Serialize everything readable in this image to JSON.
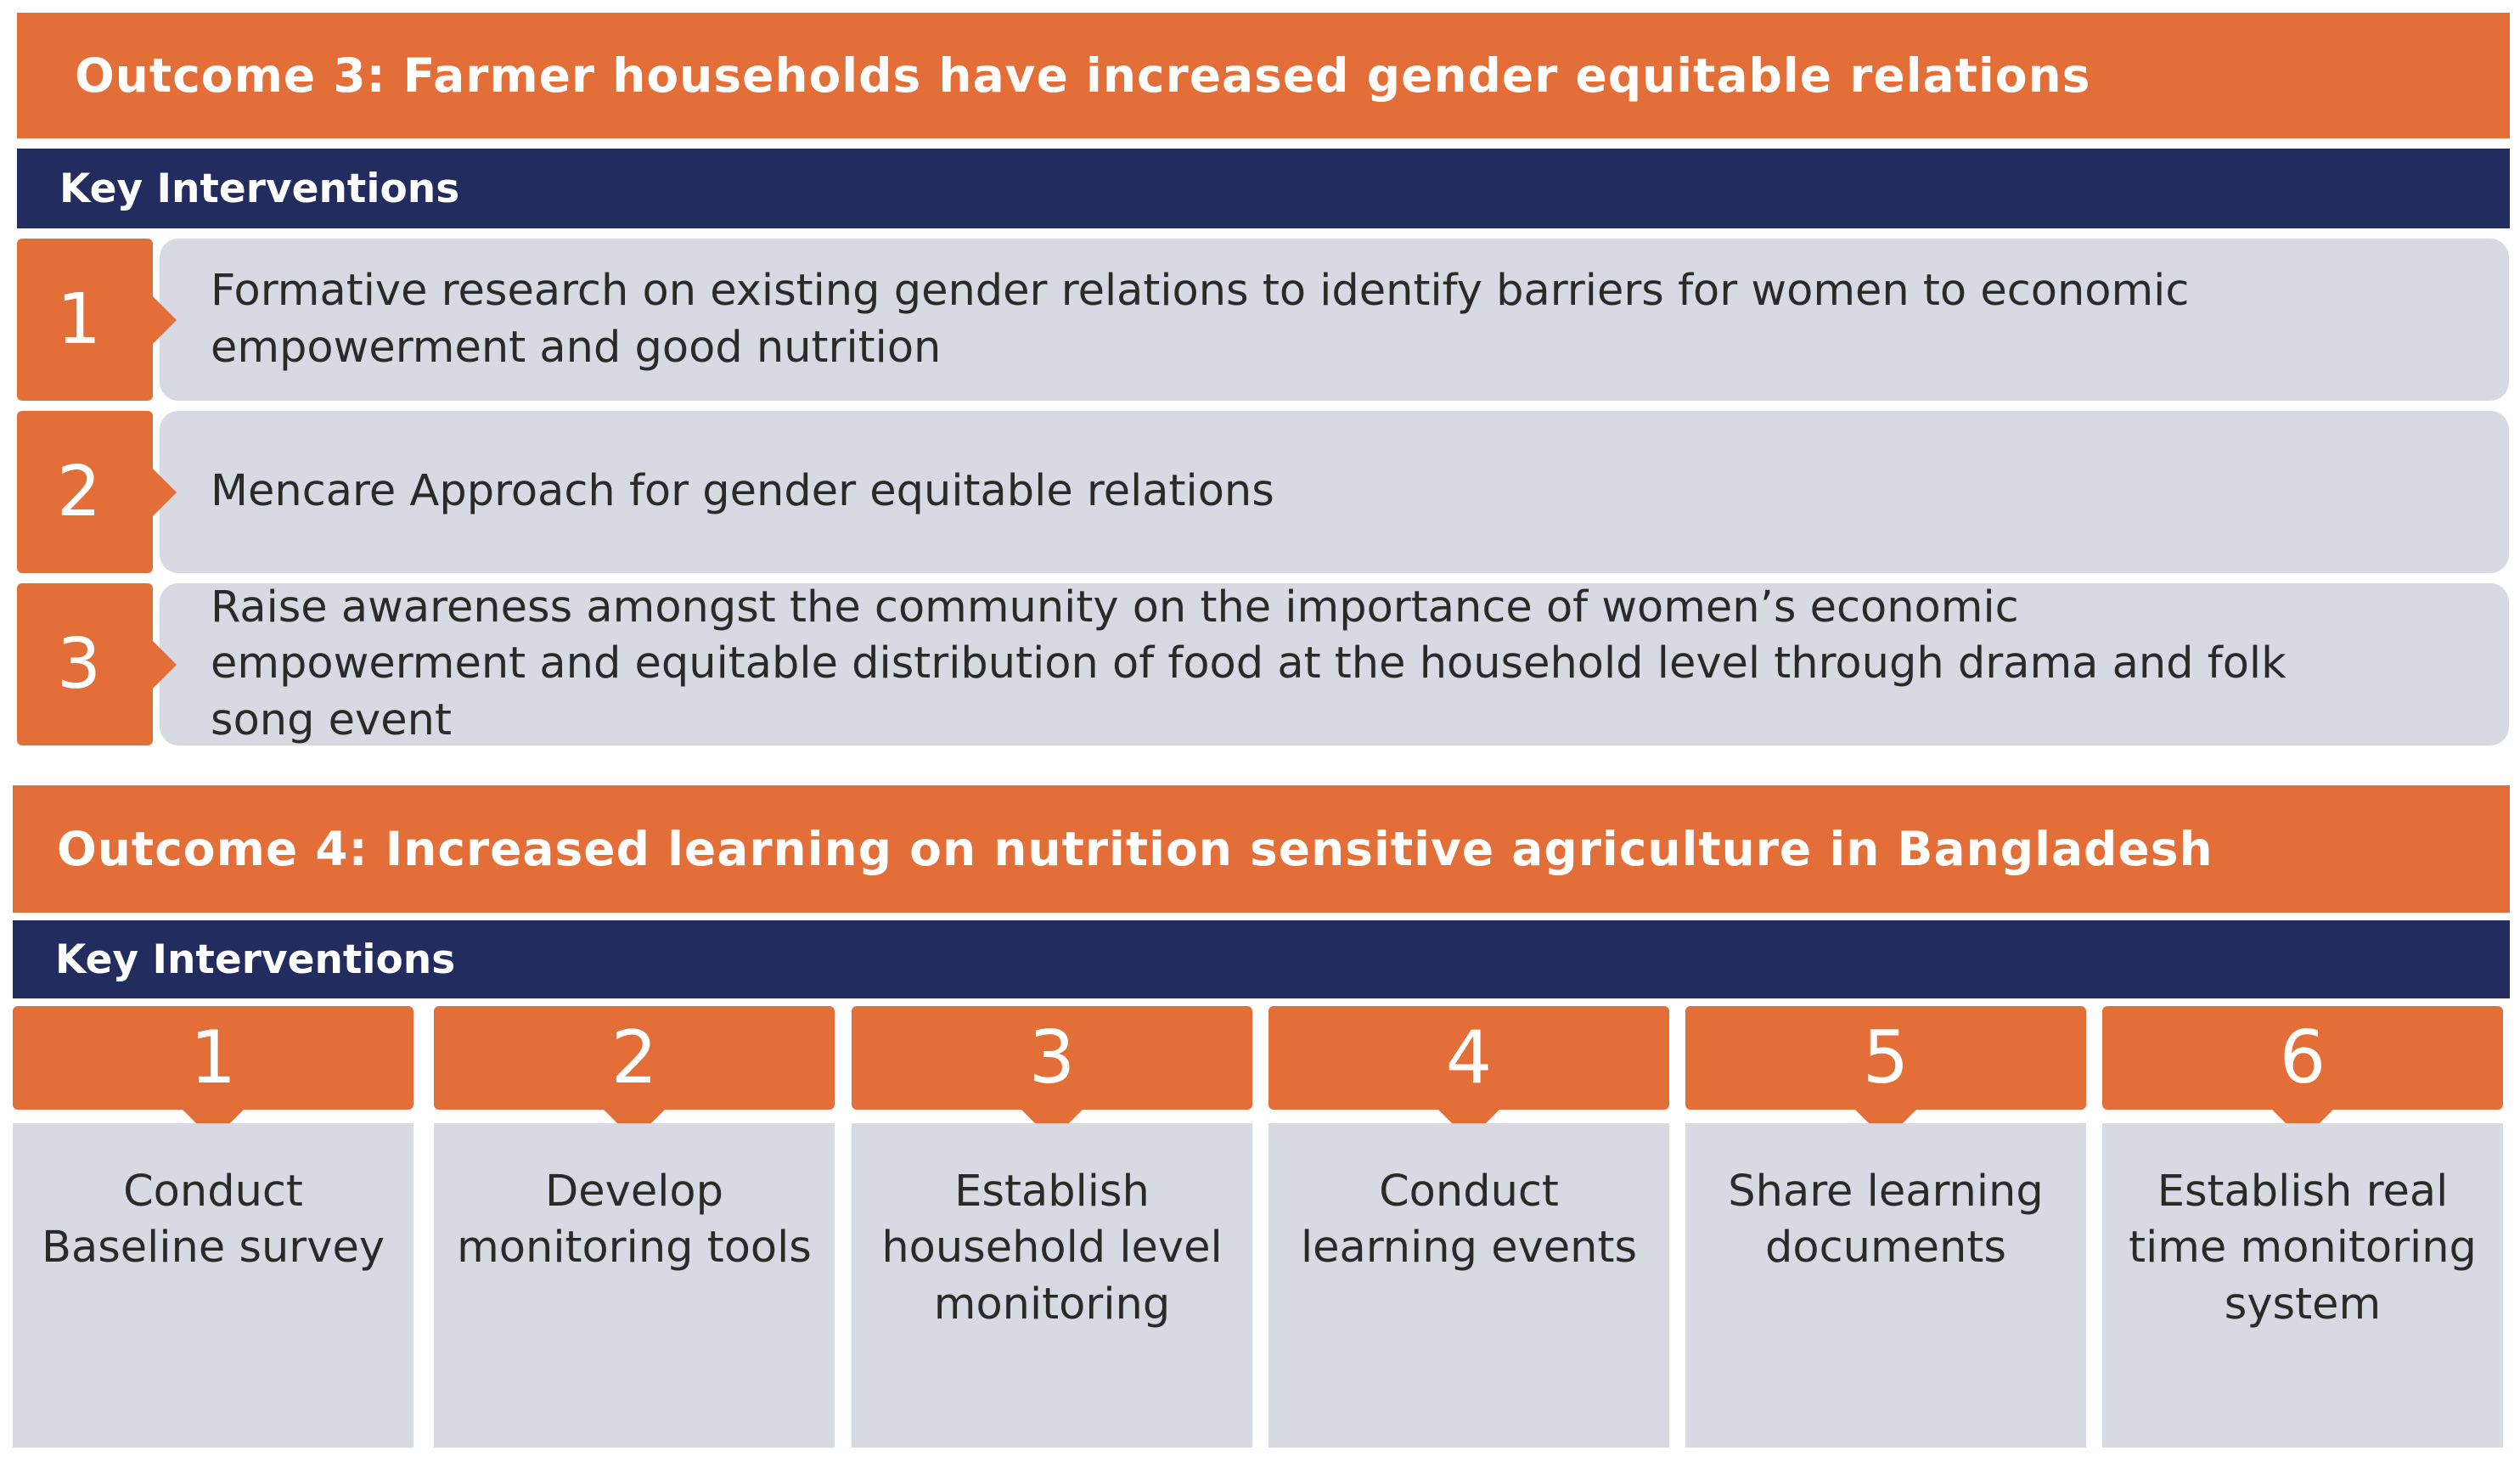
{
  "outcome3": {
    "title": "Outcome 3: Farmer households have increased gender equitable relations",
    "section_label": "Key Interventions",
    "interventions": [
      {
        "number": "1",
        "text": "Formative research on existing gender relations to identify barriers for women to economic empowerment and good nutrition"
      },
      {
        "number": "2",
        "text": "Mencare Approach for gender equitable relations"
      },
      {
        "number": "3",
        "text": "Raise awareness amongst the community on the importance of women’s economic empowerment and equitable distribution of food at the household level through drama and folk song event"
      }
    ]
  },
  "outcome4": {
    "title": "Outcome 4:  Increased learning on nutrition sensitive agriculture in Bangladesh",
    "section_label": "Key Interventions",
    "interventions": [
      {
        "number": "1",
        "text": "Conduct Baseline survey"
      },
      {
        "number": "2",
        "text": "Develop monitoring tools"
      },
      {
        "number": "3",
        "text": "Establish household level monitoring"
      },
      {
        "number": "4",
        "text": "Conduct learning events"
      },
      {
        "number": "5",
        "text": "Share learning documents"
      },
      {
        "number": "6",
        "text": "Establish real time monitoring system"
      }
    ]
  },
  "colors": {
    "accent_orange": "#e36e38",
    "header_navy": "#232c5f",
    "panel_grey": "#d7dae2"
  }
}
